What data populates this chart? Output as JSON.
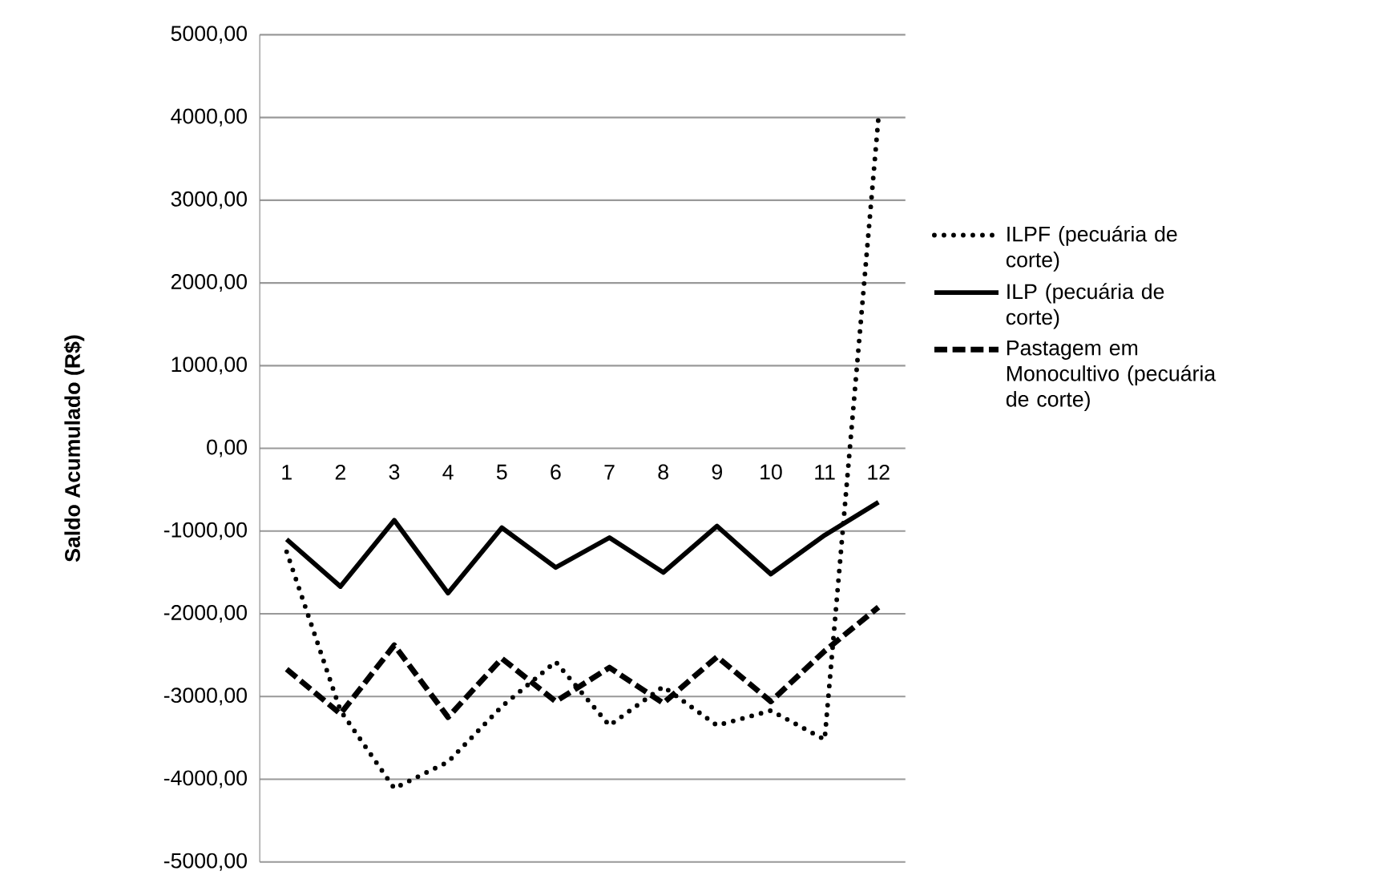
{
  "chart_data": {
    "type": "line",
    "ylabel": "Saldo Acumulado (R$)",
    "categories": [
      "1",
      "2",
      "3",
      "4",
      "5",
      "6",
      "7",
      "8",
      "9",
      "10",
      "11",
      "12"
    ],
    "series": [
      {
        "name": "ILPF (pecuária de corte)",
        "color": "#000000",
        "line_style": "dotted",
        "values": [
          -1250,
          -3170,
          -4110,
          -3790,
          -3120,
          -2580,
          -3350,
          -2880,
          -3350,
          -3170,
          -3520,
          4000
        ]
      },
      {
        "name": "ILP (pecuária de corte)",
        "color": "#000000",
        "line_style": "solid",
        "values": [
          -1100,
          -1670,
          -870,
          -1750,
          -960,
          -1440,
          -1080,
          -1500,
          -940,
          -1520,
          -1050,
          -650
        ]
      },
      {
        "name": "Pastagem em Monocultivo (pecuária de corte)",
        "color": "#000000",
        "line_style": "dashed",
        "values": [
          -2670,
          -3210,
          -2380,
          -3250,
          -2540,
          -3060,
          -2650,
          -3080,
          -2520,
          -3060,
          -2450,
          -1920
        ]
      }
    ],
    "ylim": [
      -5000,
      5000
    ],
    "yticks": [
      {
        "value": -5000,
        "label": "-5000,00"
      },
      {
        "value": -4000,
        "label": "-4000,00"
      },
      {
        "value": -3000,
        "label": "-3000,00"
      },
      {
        "value": -2000,
        "label": "-2000,00"
      },
      {
        "value": -1000,
        "label": "-1000,00"
      },
      {
        "value": 0,
        "label": "0,00"
      },
      {
        "value": 1000,
        "label": "1000,00"
      },
      {
        "value": 2000,
        "label": "2000,00"
      },
      {
        "value": 3000,
        "label": "3000,00"
      },
      {
        "value": 4000,
        "label": "4000,00"
      },
      {
        "value": 5000,
        "label": "5000,00"
      }
    ],
    "grid": "y",
    "legend": "right",
    "marker": "none"
  }
}
